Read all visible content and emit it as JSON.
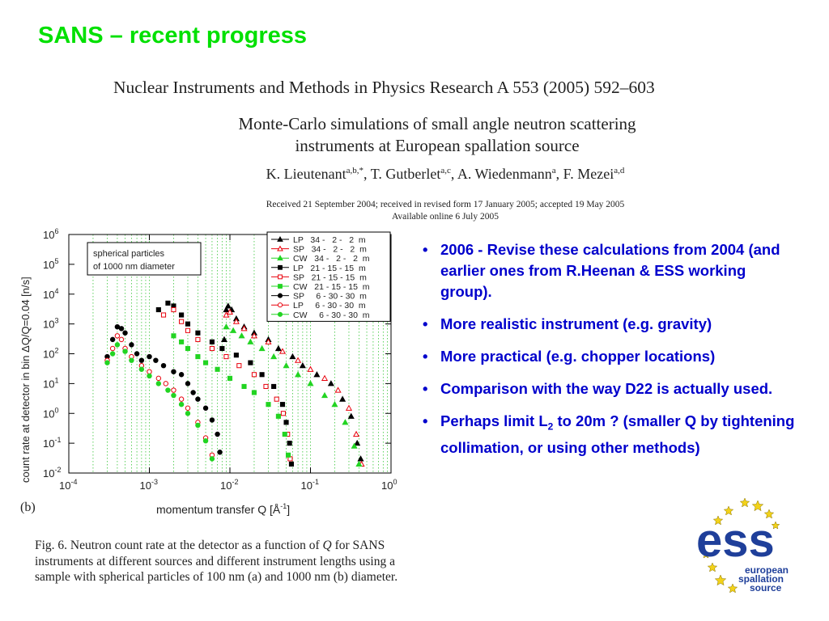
{
  "slide": {
    "title": "SANS – recent progress"
  },
  "paper": {
    "journal": "Nuclear Instruments and Methods in Physics Research A 553 (2005) 592–603",
    "title_line1": "Monte-Carlo simulations of small angle neutron scattering",
    "title_line2": "instruments at European spallation source",
    "authors": [
      {
        "name": "K. Lieutenant",
        "sup": "a,b,*",
        "sep": ", "
      },
      {
        "name": "T. Gutberlet",
        "sup": "a,c",
        "sep": ", "
      },
      {
        "name": "A. Wiedenmann",
        "sup": "a",
        "sep": ", "
      },
      {
        "name": "F. Mezei",
        "sup": "a,d",
        "sep": ""
      }
    ],
    "received": "Received 21 September 2004; received in revised form 17 January 2005; accepted 19 May 2005",
    "available": "Available online 6 July 2005"
  },
  "panel_label": "(b)",
  "bullets": [
    {
      "text": "2006 - Revise these calculations from 2004 (and earlier ones from R.Heenan & ESS working group)."
    },
    {
      "text": "More realistic instrument (e.g. gravity)"
    },
    {
      "text": "More practical (e.g. chopper locations)"
    },
    {
      "text": "Comparison with the way D22 is actually used."
    },
    {
      "pre": "Perhaps limit L",
      "sub": "2",
      "post": " to 20m ?  (smaller Q by tightening collimation, or using other methods)"
    }
  ],
  "caption": {
    "prefix": "Fig. 6.  Neutron count rate at the detector as a function of ",
    "q": "Q",
    "rest": " for SANS instruments at different sources and different instrument lengths using a sample with spherical particles of 100 nm (a) and 1000 nm (b) diameter."
  },
  "logo": {
    "text_main": "ess",
    "line1": "european",
    "line2": "spallation",
    "line3": "source",
    "star_color": "#f2d21a",
    "text_color": "#1f3f9a"
  },
  "colors": {
    "title": "#00e000",
    "bullets": "#0000cc",
    "black_series": "#000000",
    "red_series": "#e8000b",
    "green_series": "#22d422"
  },
  "chart_data": {
    "type": "scatter",
    "x_scale": "log",
    "y_scale": "log",
    "xlim": [
      0.0001,
      1
    ],
    "ylim": [
      0.01,
      1000000
    ],
    "xlabel": "momentum transfer Q [Å",
    "xlabel_sup": "-1",
    "xlabel_end": "]",
    "ylabel": "count rate at detector in bin ΔQ/Q=0.04  [n/s]",
    "x_ticks": [
      {
        "base": "10",
        "exp": "-4",
        "v": 0.0001
      },
      {
        "base": "10",
        "exp": "-3",
        "v": 0.001
      },
      {
        "base": "10",
        "exp": "-2",
        "v": 0.01
      },
      {
        "base": "10",
        "exp": "-1",
        "v": 0.1
      },
      {
        "base": "10",
        "exp": "0",
        "v": 1
      }
    ],
    "y_ticks": [
      {
        "base": "10",
        "exp": "6",
        "v": 1000000
      },
      {
        "base": "10",
        "exp": "5",
        "v": 100000
      },
      {
        "base": "10",
        "exp": "4",
        "v": 10000
      },
      {
        "base": "10",
        "exp": "3",
        "v": 1000
      },
      {
        "base": "10",
        "exp": "2",
        "v": 100
      },
      {
        "base": "10",
        "exp": "1",
        "v": 10
      },
      {
        "base": "10",
        "exp": "0",
        "v": 1
      },
      {
        "base": "10",
        "exp": "-1",
        "v": 0.1
      },
      {
        "base": "10",
        "exp": "-2",
        "v": 0.01
      }
    ],
    "annotation": [
      "spherical particles",
      "of 1000 nm diameter"
    ],
    "grid": "vertical dotted",
    "legend_position": "top-right",
    "series": [
      {
        "name": "LP   34 -   2 -   2  m",
        "marker": "triangle",
        "filled": true,
        "color": "#000000",
        "points": [
          [
            0.0085,
            300
          ],
          [
            0.009,
            3000
          ],
          [
            0.0095,
            4000
          ],
          [
            0.0105,
            3000
          ],
          [
            0.012,
            1500
          ],
          [
            0.015,
            800
          ],
          [
            0.02,
            500
          ],
          [
            0.03,
            300
          ],
          [
            0.04,
            150
          ],
          [
            0.06,
            80
          ],
          [
            0.08,
            40
          ],
          [
            0.12,
            20
          ],
          [
            0.18,
            10
          ],
          [
            0.25,
            3
          ],
          [
            0.32,
            0.8
          ],
          [
            0.38,
            0.1
          ],
          [
            0.42,
            0.03
          ]
        ]
      },
      {
        "name": "SP   34 -   2 -   2  m",
        "marker": "triangle",
        "filled": false,
        "color": "#e8000b",
        "points": [
          [
            0.009,
            2000
          ],
          [
            0.01,
            2500
          ],
          [
            0.012,
            1200
          ],
          [
            0.015,
            700
          ],
          [
            0.02,
            400
          ],
          [
            0.03,
            250
          ],
          [
            0.045,
            120
          ],
          [
            0.07,
            60
          ],
          [
            0.1,
            30
          ],
          [
            0.15,
            15
          ],
          [
            0.22,
            6
          ],
          [
            0.3,
            1.5
          ],
          [
            0.37,
            0.2
          ],
          [
            0.43,
            0.02
          ]
        ]
      },
      {
        "name": "CW   34 -   2 -   2  m",
        "marker": "triangle",
        "filled": true,
        "color": "#22d422",
        "points": [
          [
            0.009,
            800
          ],
          [
            0.011,
            600
          ],
          [
            0.014,
            400
          ],
          [
            0.018,
            250
          ],
          [
            0.025,
            150
          ],
          [
            0.035,
            80
          ],
          [
            0.05,
            40
          ],
          [
            0.07,
            20
          ],
          [
            0.1,
            10
          ],
          [
            0.15,
            4
          ],
          [
            0.2,
            2
          ],
          [
            0.27,
            0.5
          ],
          [
            0.35,
            0.08
          ],
          [
            0.4,
            0.02
          ]
        ]
      },
      {
        "name": "LP   21 - 15 - 15  m",
        "marker": "square",
        "filled": true,
        "color": "#000000",
        "points": [
          [
            0.0013,
            3000
          ],
          [
            0.0017,
            5000
          ],
          [
            0.002,
            4000
          ],
          [
            0.0025,
            2000
          ],
          [
            0.003,
            1000
          ],
          [
            0.004,
            500
          ],
          [
            0.006,
            250
          ],
          [
            0.008,
            150
          ],
          [
            0.012,
            90
          ],
          [
            0.018,
            50
          ],
          [
            0.025,
            20
          ],
          [
            0.035,
            8
          ],
          [
            0.045,
            2
          ],
          [
            0.05,
            0.5
          ],
          [
            0.055,
            0.1
          ],
          [
            0.058,
            0.02
          ]
        ]
      },
      {
        "name": "SP   21 - 15 - 15  m",
        "marker": "square",
        "filled": false,
        "color": "#e8000b",
        "points": [
          [
            0.0015,
            2000
          ],
          [
            0.002,
            3000
          ],
          [
            0.0025,
            1200
          ],
          [
            0.003,
            600
          ],
          [
            0.004,
            300
          ],
          [
            0.006,
            150
          ],
          [
            0.009,
            80
          ],
          [
            0.013,
            40
          ],
          [
            0.02,
            20
          ],
          [
            0.028,
            8
          ],
          [
            0.038,
            3
          ],
          [
            0.046,
            1
          ],
          [
            0.052,
            0.2
          ],
          [
            0.056,
            0.03
          ]
        ]
      },
      {
        "name": "CW   21 - 15 - 15  m",
        "marker": "square",
        "filled": true,
        "color": "#22d422",
        "points": [
          [
            0.002,
            400
          ],
          [
            0.0025,
            250
          ],
          [
            0.003,
            150
          ],
          [
            0.004,
            80
          ],
          [
            0.005,
            50
          ],
          [
            0.007,
            30
          ],
          [
            0.01,
            15
          ],
          [
            0.015,
            8
          ],
          [
            0.02,
            5
          ],
          [
            0.03,
            2
          ],
          [
            0.04,
            0.8
          ],
          [
            0.048,
            0.2
          ],
          [
            0.053,
            0.04
          ]
        ]
      },
      {
        "name": "SP     6 - 30 - 30  m",
        "marker": "circle",
        "filled": true,
        "color": "#000000",
        "points": [
          [
            0.0003,
            80
          ],
          [
            0.00035,
            300
          ],
          [
            0.0004,
            800
          ],
          [
            0.00045,
            700
          ],
          [
            0.0005,
            500
          ],
          [
            0.0006,
            200
          ],
          [
            0.0007,
            100
          ],
          [
            0.0008,
            60
          ],
          [
            0.001,
            80
          ],
          [
            0.0012,
            60
          ],
          [
            0.0015,
            40
          ],
          [
            0.002,
            25
          ],
          [
            0.0025,
            20
          ],
          [
            0.003,
            10
          ],
          [
            0.0035,
            5
          ],
          [
            0.004,
            3
          ],
          [
            0.005,
            1.5
          ],
          [
            0.006,
            0.6
          ],
          [
            0.007,
            0.2
          ],
          [
            0.0075,
            0.05
          ]
        ]
      },
      {
        "name": "LP     6 - 30 - 30  m",
        "marker": "circle",
        "filled": false,
        "color": "#e8000b",
        "points": [
          [
            0.0003,
            60
          ],
          [
            0.00035,
            150
          ],
          [
            0.0004,
            400
          ],
          [
            0.00045,
            300
          ],
          [
            0.0005,
            150
          ],
          [
            0.0006,
            80
          ],
          [
            0.0008,
            40
          ],
          [
            0.001,
            25
          ],
          [
            0.0013,
            15
          ],
          [
            0.0016,
            10
          ],
          [
            0.002,
            6
          ],
          [
            0.0025,
            3
          ],
          [
            0.003,
            1.5
          ],
          [
            0.004,
            0.5
          ],
          [
            0.005,
            0.15
          ],
          [
            0.006,
            0.04
          ]
        ]
      },
      {
        "name": "CW     6 - 30 - 30  m",
        "marker": "circle",
        "filled": true,
        "color": "#22d422",
        "points": [
          [
            0.0003,
            50
          ],
          [
            0.00035,
            100
          ],
          [
            0.0004,
            200
          ],
          [
            0.0005,
            120
          ],
          [
            0.0006,
            60
          ],
          [
            0.0008,
            30
          ],
          [
            0.001,
            18
          ],
          [
            0.0013,
            10
          ],
          [
            0.0017,
            6
          ],
          [
            0.002,
            4
          ],
          [
            0.0025,
            2
          ],
          [
            0.003,
            1
          ],
          [
            0.004,
            0.4
          ],
          [
            0.005,
            0.12
          ],
          [
            0.006,
            0.03
          ]
        ]
      }
    ]
  }
}
